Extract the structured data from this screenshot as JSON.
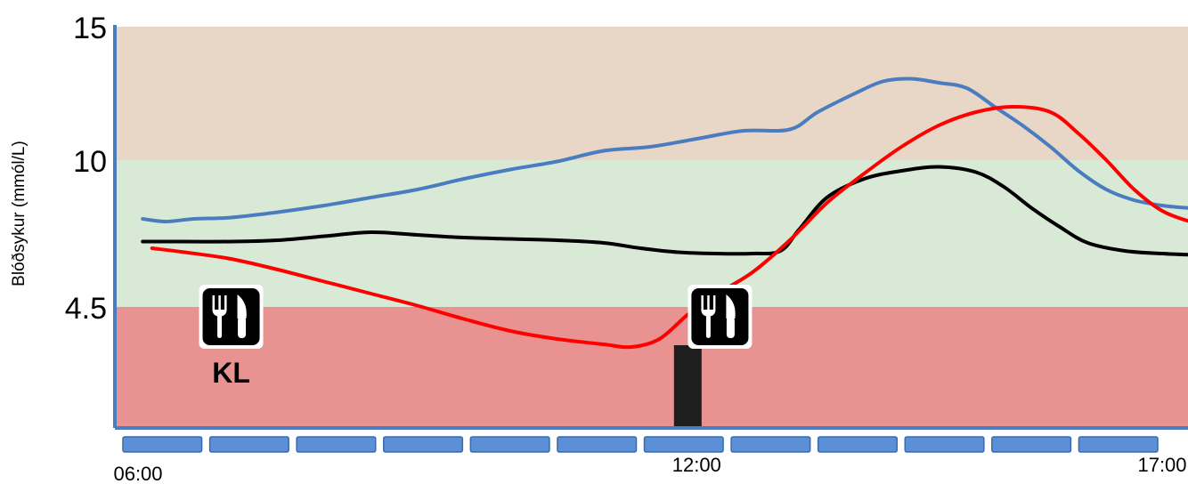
{
  "chart_data": {
    "type": "line",
    "ylabel": "Blóðsykur (mmól/L)",
    "y_ticks": [
      "15",
      "10",
      "4.5"
    ],
    "x_tick_labels": [
      {
        "t": 6,
        "label": "06:00"
      },
      {
        "t": 12,
        "label": "12:00"
      },
      {
        "t": 17,
        "label": "17:00"
      }
    ],
    "xlim": [
      6,
      17.5
    ],
    "ylim": [
      0,
      15
    ],
    "bands": [
      {
        "from": 10,
        "to": 15,
        "color": "#e8d6c6"
      },
      {
        "from": 4.5,
        "to": 10,
        "color": "#d8ead6"
      },
      {
        "from": 0,
        "to": 4.5,
        "color": "#e99292"
      }
    ],
    "timeline_segments": 12,
    "series": [
      {
        "color": "#4a7cc0",
        "points": [
          [
            6.05,
            7.8
          ],
          [
            6.3,
            7.7
          ],
          [
            6.6,
            7.8
          ],
          [
            7.0,
            7.85
          ],
          [
            7.5,
            8.05
          ],
          [
            8.0,
            8.3
          ],
          [
            8.5,
            8.6
          ],
          [
            9.0,
            8.9
          ],
          [
            9.5,
            9.3
          ],
          [
            10.0,
            9.65
          ],
          [
            10.5,
            9.95
          ],
          [
            11.0,
            10.35
          ],
          [
            11.5,
            10.5
          ],
          [
            12.0,
            10.8
          ],
          [
            12.5,
            11.1
          ],
          [
            13.0,
            11.15
          ],
          [
            13.3,
            11.8
          ],
          [
            13.7,
            12.5
          ],
          [
            14.0,
            12.95
          ],
          [
            14.3,
            13.05
          ],
          [
            14.6,
            12.9
          ],
          [
            14.9,
            12.7
          ],
          [
            15.2,
            12.0
          ],
          [
            15.5,
            11.3
          ],
          [
            15.8,
            10.5
          ],
          [
            16.1,
            9.6
          ],
          [
            16.4,
            8.9
          ],
          [
            16.7,
            8.5
          ],
          [
            17.0,
            8.3
          ],
          [
            17.3,
            8.2
          ]
        ]
      },
      {
        "color": "#000000",
        "points": [
          [
            6.05,
            6.95
          ],
          [
            6.5,
            6.95
          ],
          [
            7.0,
            6.95
          ],
          [
            7.5,
            7.0
          ],
          [
            8.0,
            7.15
          ],
          [
            8.5,
            7.3
          ],
          [
            9.0,
            7.2
          ],
          [
            9.5,
            7.1
          ],
          [
            10.0,
            7.05
          ],
          [
            10.5,
            7.0
          ],
          [
            11.0,
            6.9
          ],
          [
            11.4,
            6.7
          ],
          [
            11.8,
            6.55
          ],
          [
            12.2,
            6.5
          ],
          [
            12.6,
            6.5
          ],
          [
            12.9,
            6.6
          ],
          [
            13.1,
            7.4
          ],
          [
            13.4,
            8.6
          ],
          [
            13.8,
            9.3
          ],
          [
            14.2,
            9.6
          ],
          [
            14.6,
            9.75
          ],
          [
            15.0,
            9.55
          ],
          [
            15.3,
            9.0
          ],
          [
            15.6,
            8.2
          ],
          [
            15.9,
            7.5
          ],
          [
            16.2,
            6.9
          ],
          [
            16.6,
            6.6
          ],
          [
            17.0,
            6.5
          ],
          [
            17.35,
            6.45
          ]
        ]
      },
      {
        "color": "#ff0000",
        "points": [
          [
            6.15,
            6.7
          ],
          [
            6.5,
            6.55
          ],
          [
            7.0,
            6.3
          ],
          [
            7.5,
            5.9
          ],
          [
            8.0,
            5.45
          ],
          [
            8.5,
            5.0
          ],
          [
            9.0,
            4.55
          ],
          [
            9.5,
            4.05
          ],
          [
            10.0,
            3.6
          ],
          [
            10.5,
            3.3
          ],
          [
            11.0,
            3.1
          ],
          [
            11.3,
            3.0
          ],
          [
            11.6,
            3.3
          ],
          [
            11.9,
            4.2
          ],
          [
            12.2,
            4.95
          ],
          [
            12.6,
            5.8
          ],
          [
            13.0,
            7.0
          ],
          [
            13.4,
            8.4
          ],
          [
            13.8,
            9.5
          ],
          [
            14.2,
            10.5
          ],
          [
            14.6,
            11.3
          ],
          [
            15.0,
            11.8
          ],
          [
            15.4,
            12.0
          ],
          [
            15.8,
            11.8
          ],
          [
            16.1,
            11.0
          ],
          [
            16.4,
            10.0
          ],
          [
            16.7,
            8.9
          ],
          [
            17.0,
            8.1
          ],
          [
            17.3,
            7.7
          ],
          [
            17.5,
            7.55
          ]
        ]
      }
    ],
    "meal_markers": [
      {
        "t": 7.0,
        "icon": "fork-knife-icon",
        "label": "KL"
      },
      {
        "t": 12.25,
        "icon": "fork-knife-icon",
        "label": ""
      }
    ],
    "dose_bar": {
      "t": 11.9
    }
  }
}
